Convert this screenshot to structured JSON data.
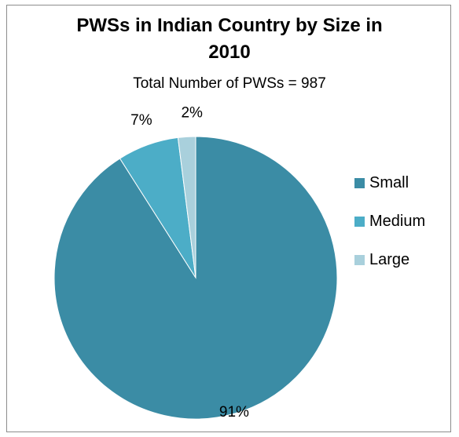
{
  "chart_data": {
    "type": "pie",
    "title": "PWSs in Indian Country by Size in 2010",
    "title_lines": [
      "PWSs in Indian Country by Size in",
      "2010"
    ],
    "subtitle": "Total Number of PWSs = 987",
    "legend_position": "right",
    "categories": [
      "Small",
      "Medium",
      "Large"
    ],
    "values": [
      91,
      7,
      2
    ],
    "data_labels": [
      "91%",
      "7%",
      "2%"
    ],
    "colors": [
      "#3b8ca5",
      "#4cadc7",
      "#a9d0dc"
    ],
    "start_angle_deg": 0,
    "direction": "clockwise"
  }
}
